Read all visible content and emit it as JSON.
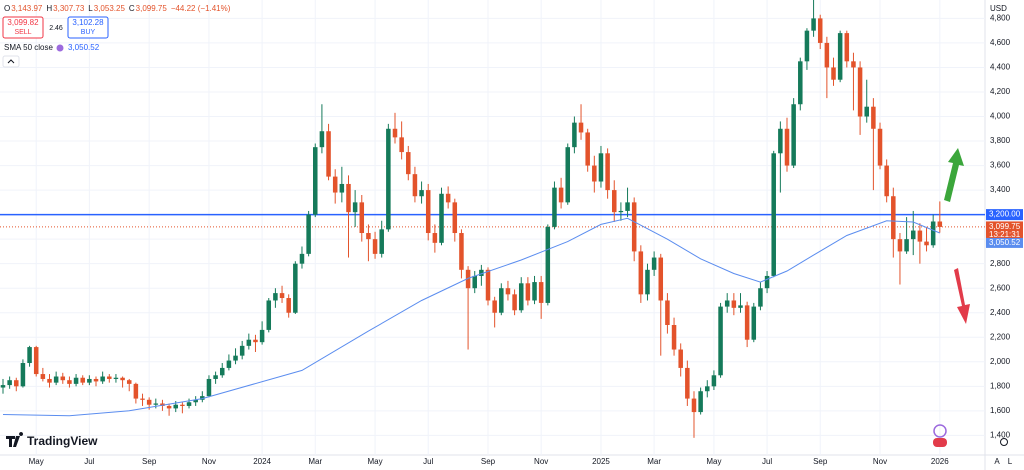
{
  "chart_data": {
    "type": "candlestick",
    "legend": [
      {
        "key": "O",
        "value": "3,143.97"
      },
      {
        "key": "H",
        "value": "3,307.73"
      },
      {
        "key": "L",
        "value": "3,053.25"
      },
      {
        "key": "C",
        "value": "3,099.75"
      }
    ],
    "change": "−44.22 (−1.41%)",
    "sell": {
      "price": "3,099.82",
      "label": "SELL"
    },
    "spread": "2.46",
    "buy": {
      "price": "3,102.28",
      "label": "BUY"
    },
    "currency": "USD",
    "brand": "TradingView",
    "scale_buttons": [
      "A",
      "L"
    ],
    "up_color": "#157a5a",
    "down_color": "#e3532b",
    "grid": true,
    "xlim": [
      -0.45,
      147.8
    ],
    "ylim": [
      1240,
      4950
    ],
    "yticks": [
      {
        "value": 1400,
        "label": "1,400"
      },
      {
        "value": 1600,
        "label": "1,600"
      },
      {
        "value": 1800,
        "label": "1,800"
      },
      {
        "value": 2000,
        "label": "2,000"
      },
      {
        "value": 2200,
        "label": "2,200"
      },
      {
        "value": 2400,
        "label": "2,400"
      },
      {
        "value": 2600,
        "label": "2,600"
      },
      {
        "value": 2800,
        "label": "2,800"
      },
      {
        "value": 3000,
        "label": "3,000"
      },
      {
        "value": 3200,
        "label": "3,200"
      },
      {
        "value": 3400,
        "label": "3,400"
      },
      {
        "value": 3600,
        "label": "3,600"
      },
      {
        "value": 3800,
        "label": "3,800"
      },
      {
        "value": 4000,
        "label": "4,000"
      },
      {
        "value": 4200,
        "label": "4,200"
      },
      {
        "value": 4400,
        "label": "4,400"
      },
      {
        "value": 4600,
        "label": "4,600"
      },
      {
        "value": 4800,
        "label": "4,800"
      }
    ],
    "xticks": [
      {
        "value": 5,
        "label": "May"
      },
      {
        "value": 13,
        "label": "Jul"
      },
      {
        "value": 22,
        "label": "Sep"
      },
      {
        "value": 31,
        "label": "Nov"
      },
      {
        "value": 39,
        "label": "2024"
      },
      {
        "value": 47,
        "label": "Mar"
      },
      {
        "value": 56,
        "label": "May"
      },
      {
        "value": 64,
        "label": "Jul"
      },
      {
        "value": 73,
        "label": "Sep"
      },
      {
        "value": 81,
        "label": "Nov"
      },
      {
        "value": 90,
        "label": "2025"
      },
      {
        "value": 98,
        "label": "Mar"
      },
      {
        "value": 107,
        "label": "May"
      },
      {
        "value": 115,
        "label": "Jul"
      },
      {
        "value": 123,
        "label": "Sep"
      },
      {
        "value": 132,
        "label": "Nov"
      },
      {
        "value": 141,
        "label": "2026"
      }
    ],
    "hline": {
      "value": 3200,
      "label": "3,200.00",
      "color": "#2962ff"
    },
    "current_price": {
      "value": 3099.75,
      "label": "3,099.75",
      "countdown": "13:21:31"
    },
    "sma": {
      "name": "SMA 50 close",
      "value_label": "3,050.52",
      "color": "#5b8def",
      "x": [
        0,
        10,
        19,
        30,
        45,
        55,
        63,
        70,
        78,
        85,
        90,
        94,
        100,
        105,
        110,
        114,
        118,
        122,
        127,
        133,
        137,
        141
      ],
      "values": [
        1570,
        1560,
        1600,
        1700,
        1930,
        2250,
        2500,
        2680,
        2830,
        2980,
        3120,
        3170,
        3000,
        2840,
        2720,
        2650,
        2740,
        2870,
        3030,
        3150,
        3140,
        3050.52
      ]
    },
    "candles": [
      [
        1790,
        1860,
        1740,
        1810
      ],
      [
        1810,
        1880,
        1780,
        1850
      ],
      [
        1850,
        1870,
        1760,
        1800
      ],
      [
        1800,
        2020,
        1790,
        1990
      ],
      [
        1990,
        2130,
        1960,
        2120
      ],
      [
        2120,
        2130,
        1880,
        1900
      ],
      [
        1900,
        1950,
        1840,
        1860
      ],
      [
        1860,
        1900,
        1790,
        1830
      ],
      [
        1830,
        1920,
        1810,
        1880
      ],
      [
        1880,
        1910,
        1820,
        1850
      ],
      [
        1850,
        1880,
        1790,
        1820
      ],
      [
        1820,
        1900,
        1800,
        1870
      ],
      [
        1870,
        1890,
        1810,
        1830
      ],
      [
        1830,
        1890,
        1810,
        1860
      ],
      [
        1860,
        1880,
        1800,
        1840
      ],
      [
        1840,
        1920,
        1820,
        1880
      ],
      [
        1880,
        1900,
        1830,
        1860
      ],
      [
        1860,
        1900,
        1830,
        1870
      ],
      [
        1870,
        1880,
        1790,
        1850
      ],
      [
        1850,
        1860,
        1760,
        1820
      ],
      [
        1820,
        1830,
        1660,
        1700
      ],
      [
        1700,
        1740,
        1640,
        1690
      ],
      [
        1690,
        1710,
        1610,
        1650
      ],
      [
        1650,
        1700,
        1620,
        1660
      ],
      [
        1660,
        1690,
        1600,
        1640
      ],
      [
        1640,
        1660,
        1560,
        1620
      ],
      [
        1620,
        1680,
        1590,
        1650
      ],
      [
        1650,
        1670,
        1580,
        1640
      ],
      [
        1640,
        1700,
        1620,
        1670
      ],
      [
        1670,
        1720,
        1640,
        1690
      ],
      [
        1690,
        1760,
        1670,
        1720
      ],
      [
        1720,
        1890,
        1710,
        1860
      ],
      [
        1860,
        1920,
        1820,
        1890
      ],
      [
        1890,
        1990,
        1870,
        1950
      ],
      [
        1950,
        2060,
        1930,
        2010
      ],
      [
        2010,
        2110,
        1980,
        2050
      ],
      [
        2050,
        2170,
        2020,
        2130
      ],
      [
        2130,
        2230,
        2100,
        2180
      ],
      [
        2180,
        2220,
        2080,
        2160
      ],
      [
        2160,
        2330,
        2140,
        2260
      ],
      [
        2260,
        2520,
        2240,
        2500
      ],
      [
        2500,
        2600,
        2440,
        2560
      ],
      [
        2560,
        2620,
        2480,
        2520
      ],
      [
        2520,
        2550,
        2360,
        2400
      ],
      [
        2400,
        2820,
        2390,
        2800
      ],
      [
        2800,
        2940,
        2760,
        2880
      ],
      [
        2880,
        3230,
        2860,
        3200
      ],
      [
        3200,
        3780,
        3180,
        3750
      ],
      [
        3750,
        4100,
        3700,
        3880
      ],
      [
        3880,
        3940,
        3480,
        3510
      ],
      [
        3510,
        3570,
        3290,
        3380
      ],
      [
        3380,
        3590,
        3300,
        3450
      ],
      [
        3450,
        3520,
        2850,
        3220
      ],
      [
        3220,
        3400,
        3100,
        3300
      ],
      [
        3300,
        3360,
        2980,
        3050
      ],
      [
        3050,
        3120,
        2820,
        3000
      ],
      [
        3000,
        3060,
        2840,
        2880
      ],
      [
        2880,
        3150,
        2850,
        3080
      ],
      [
        3080,
        3940,
        3060,
        3900
      ],
      [
        3900,
        4030,
        3780,
        3830
      ],
      [
        3830,
        3960,
        3650,
        3710
      ],
      [
        3710,
        3760,
        3480,
        3530
      ],
      [
        3530,
        3590,
        3300,
        3350
      ],
      [
        3350,
        3470,
        3290,
        3400
      ],
      [
        3400,
        3450,
        2990,
        3050
      ],
      [
        3050,
        3120,
        2890,
        2970
      ],
      [
        2970,
        3420,
        2950,
        3370
      ],
      [
        3370,
        3430,
        3250,
        3300
      ],
      [
        3300,
        3330,
        2980,
        3050
      ],
      [
        3050,
        3080,
        2680,
        2750
      ],
      [
        2750,
        2780,
        2100,
        2600
      ],
      [
        2600,
        2740,
        2560,
        2700
      ],
      [
        2700,
        2790,
        2620,
        2750
      ],
      [
        2750,
        2770,
        2460,
        2500
      ],
      [
        2500,
        2530,
        2280,
        2400
      ],
      [
        2400,
        2640,
        2380,
        2600
      ],
      [
        2600,
        2660,
        2500,
        2550
      ],
      [
        2550,
        2590,
        2380,
        2420
      ],
      [
        2420,
        2690,
        2400,
        2640
      ],
      [
        2640,
        2690,
        2460,
        2500
      ],
      [
        2500,
        2700,
        2470,
        2650
      ],
      [
        2650,
        2700,
        2350,
        2480
      ],
      [
        2480,
        3120,
        2460,
        3100
      ],
      [
        3100,
        3470,
        3080,
        3420
      ],
      [
        3420,
        3500,
        3250,
        3300
      ],
      [
        3300,
        3780,
        3280,
        3750
      ],
      [
        3750,
        4000,
        3700,
        3950
      ],
      [
        3950,
        4100,
        3810,
        3870
      ],
      [
        3870,
        3900,
        3550,
        3600
      ],
      [
        3600,
        3680,
        3380,
        3470
      ],
      [
        3470,
        3760,
        3420,
        3700
      ],
      [
        3700,
        3740,
        3330,
        3400
      ],
      [
        3400,
        3480,
        3140,
        3220
      ],
      [
        3220,
        3300,
        3150,
        3230
      ],
      [
        3230,
        3420,
        3180,
        3300
      ],
      [
        3300,
        3340,
        2820,
        2900
      ],
      [
        2900,
        2950,
        2480,
        2550
      ],
      [
        2550,
        2800,
        2500,
        2750
      ],
      [
        2750,
        2900,
        2700,
        2850
      ],
      [
        2850,
        2880,
        2050,
        2500
      ],
      [
        2500,
        2560,
        2230,
        2300
      ],
      [
        2300,
        2360,
        2050,
        2100
      ],
      [
        2100,
        2150,
        1880,
        1950
      ],
      [
        1950,
        2010,
        1640,
        1700
      ],
      [
        1700,
        1760,
        1380,
        1590
      ],
      [
        1590,
        1790,
        1570,
        1760
      ],
      [
        1760,
        1850,
        1710,
        1800
      ],
      [
        1800,
        1930,
        1770,
        1890
      ],
      [
        1890,
        2480,
        1870,
        2450
      ],
      [
        2450,
        2560,
        2400,
        2500
      ],
      [
        2500,
        2560,
        2380,
        2440
      ],
      [
        2440,
        2560,
        2400,
        2460
      ],
      [
        2460,
        2490,
        2120,
        2180
      ],
      [
        2180,
        2480,
        2160,
        2450
      ],
      [
        2450,
        2650,
        2420,
        2600
      ],
      [
        2600,
        2740,
        2560,
        2700
      ],
      [
        2700,
        3720,
        2690,
        3700
      ],
      [
        3700,
        3960,
        3380,
        3900
      ],
      [
        3900,
        3990,
        3550,
        3600
      ],
      [
        3600,
        4150,
        3580,
        4100
      ],
      [
        4100,
        4480,
        4050,
        4450
      ],
      [
        4450,
        4720,
        4380,
        4700
      ],
      [
        4700,
        4950,
        4650,
        4800
      ],
      [
        4800,
        4830,
        4550,
        4600
      ],
      [
        4600,
        4650,
        4150,
        4400
      ],
      [
        4400,
        4480,
        4250,
        4300
      ],
      [
        4300,
        4700,
        4280,
        4680
      ],
      [
        4680,
        4700,
        4400,
        4450
      ],
      [
        4450,
        4520,
        4050,
        4400
      ],
      [
        4400,
        4450,
        3850,
        4000
      ],
      [
        4000,
        4300,
        3950,
        4080
      ],
      [
        4080,
        4150,
        3400,
        3900
      ],
      [
        3900,
        3950,
        3570,
        3600
      ],
      [
        3600,
        3650,
        3300,
        3350
      ],
      [
        3350,
        3420,
        2850,
        3000
      ],
      [
        3000,
        3050,
        2630,
        2900
      ],
      [
        2900,
        3180,
        2880,
        3000
      ],
      [
        3000,
        3230,
        2870,
        3070
      ],
      [
        3070,
        3130,
        2800,
        2980
      ],
      [
        2980,
        3100,
        2900,
        2950
      ],
      [
        2950,
        3200,
        2930,
        3143.97
      ],
      [
        3143.97,
        3307.73,
        3053.25,
        3099.75
      ]
    ]
  }
}
